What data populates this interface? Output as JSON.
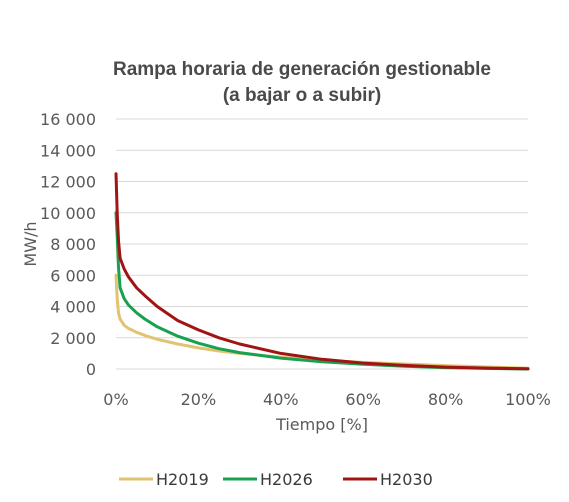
{
  "chart_data": {
    "type": "line",
    "title": [
      "Rampa horaria de generación gestionable",
      "(a bajar o a subir)"
    ],
    "xlabel": "Tiempo [%]",
    "ylabel": "MW/h",
    "xlim": [
      0,
      100
    ],
    "ylim": [
      0,
      16000
    ],
    "grid": true,
    "legend": "bottom",
    "x_ticks": [
      "0%",
      "20%",
      "40%",
      "60%",
      "80%",
      "100%"
    ],
    "x_tick_values": [
      0,
      20,
      40,
      60,
      80,
      100
    ],
    "y_ticks": [
      "0",
      "2 000",
      "4 000",
      "6 000",
      "8 000",
      "10 000",
      "12 000",
      "16 000"
    ],
    "y_tick_values": [
      0,
      2000,
      4000,
      6000,
      8000,
      10000,
      12000,
      14000,
      16000
    ],
    "y_tick_labels_all": [
      "0",
      "2 000",
      "4 000",
      "6 000",
      "8 000",
      "10 000",
      "12 000",
      "14 000",
      "16 000"
    ],
    "series": [
      {
        "name": "H2019",
        "color": "#e2c36f",
        "x": [
          0,
          0.3,
          0.6,
          1,
          2,
          3,
          5,
          7,
          10,
          15,
          20,
          25,
          30,
          40,
          50,
          60,
          70,
          80,
          90,
          100
        ],
        "y": [
          6000,
          4500,
          3600,
          3200,
          2800,
          2600,
          2350,
          2150,
          1900,
          1600,
          1350,
          1150,
          1000,
          750,
          560,
          420,
          320,
          220,
          130,
          50
        ]
      },
      {
        "name": "H2026",
        "color": "#1aa050",
        "x": [
          0,
          0.3,
          0.6,
          1,
          2,
          3,
          5,
          7,
          10,
          15,
          20,
          25,
          30,
          40,
          50,
          60,
          70,
          80,
          90,
          100
        ],
        "y": [
          10000,
          8500,
          6500,
          5200,
          4500,
          4100,
          3600,
          3200,
          2700,
          2100,
          1650,
          1300,
          1050,
          700,
          460,
          300,
          180,
          90,
          40,
          0
        ]
      },
      {
        "name": "H2030",
        "color": "#a01414",
        "x": [
          0,
          0.3,
          0.6,
          1,
          2,
          3,
          5,
          7,
          10,
          15,
          20,
          25,
          30,
          40,
          50,
          60,
          70,
          80,
          90,
          100
        ],
        "y": [
          12500,
          10000,
          8200,
          7100,
          6400,
          5900,
          5200,
          4700,
          4000,
          3100,
          2500,
          2000,
          1600,
          1000,
          620,
          380,
          230,
          120,
          60,
          10
        ]
      }
    ]
  }
}
